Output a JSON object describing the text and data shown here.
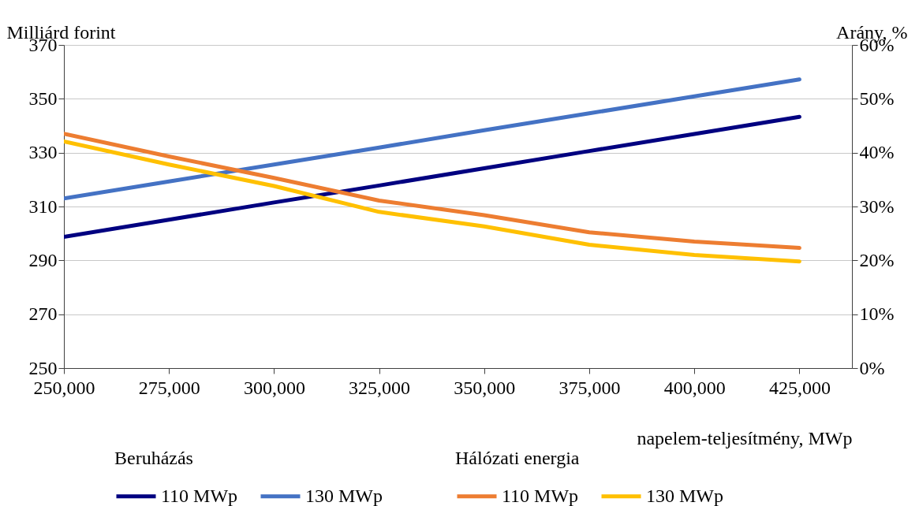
{
  "chart_data": {
    "type": "line",
    "xlabel": "napelem-teljesítmény, MWp",
    "ylabel": "Milliárd forint",
    "y2label": "Arány, %",
    "x": [
      250000,
      275000,
      300000,
      325000,
      350000,
      375000,
      400000,
      425000
    ],
    "xlim": [
      250000,
      437500
    ],
    "xticks": [
      {
        "value": 250000,
        "label": "250,000"
      },
      {
        "value": 275000,
        "label": "275,000"
      },
      {
        "value": 300000,
        "label": "300,000"
      },
      {
        "value": 325000,
        "label": "325,000"
      },
      {
        "value": 350000,
        "label": "350,000"
      },
      {
        "value": 375000,
        "label": "375,000"
      },
      {
        "value": 400000,
        "label": "400,000"
      },
      {
        "value": 425000,
        "label": "425,000"
      }
    ],
    "ylim": [
      250,
      370
    ],
    "yticks": [
      250,
      270,
      290,
      310,
      330,
      350,
      370
    ],
    "y2lim": [
      0,
      60
    ],
    "y2ticks": [
      {
        "value": 0,
        "label": "0%"
      },
      {
        "value": 10,
        "label": "10%"
      },
      {
        "value": 20,
        "label": "20%"
      },
      {
        "value": 30,
        "label": "30%"
      },
      {
        "value": 40,
        "label": "40%"
      },
      {
        "value": 50,
        "label": "50%"
      },
      {
        "value": 60,
        "label": "60%"
      }
    ],
    "series": [
      {
        "name": "110 MWp",
        "color": "#000080",
        "values": [
          298.7,
          305.1,
          311.5,
          317.8,
          324.2,
          330.6,
          336.9,
          343.3
        ]
      },
      {
        "name": "130 MWp",
        "color": "#4472c4",
        "values": [
          313.0,
          319.3,
          325.6,
          331.9,
          338.3,
          344.6,
          350.9,
          357.2
        ]
      },
      {
        "name": "110 MWp",
        "color": "#ed7d31",
        "axis": "y2",
        "values": [
          43.5,
          39.3,
          35.3,
          31.1,
          28.4,
          25.2,
          23.5,
          22.3
        ]
      },
      {
        "name": "130 MWp",
        "color": "#ffc000",
        "axis": "y2",
        "values": [
          42.1,
          37.8,
          33.8,
          29.0,
          26.3,
          22.9,
          21.0,
          19.8
        ]
      }
    ],
    "annotations": [
      "Beruházás",
      "Hálózati energia"
    ],
    "grid": "y",
    "legend": "bottom",
    "line_style": "solid"
  }
}
